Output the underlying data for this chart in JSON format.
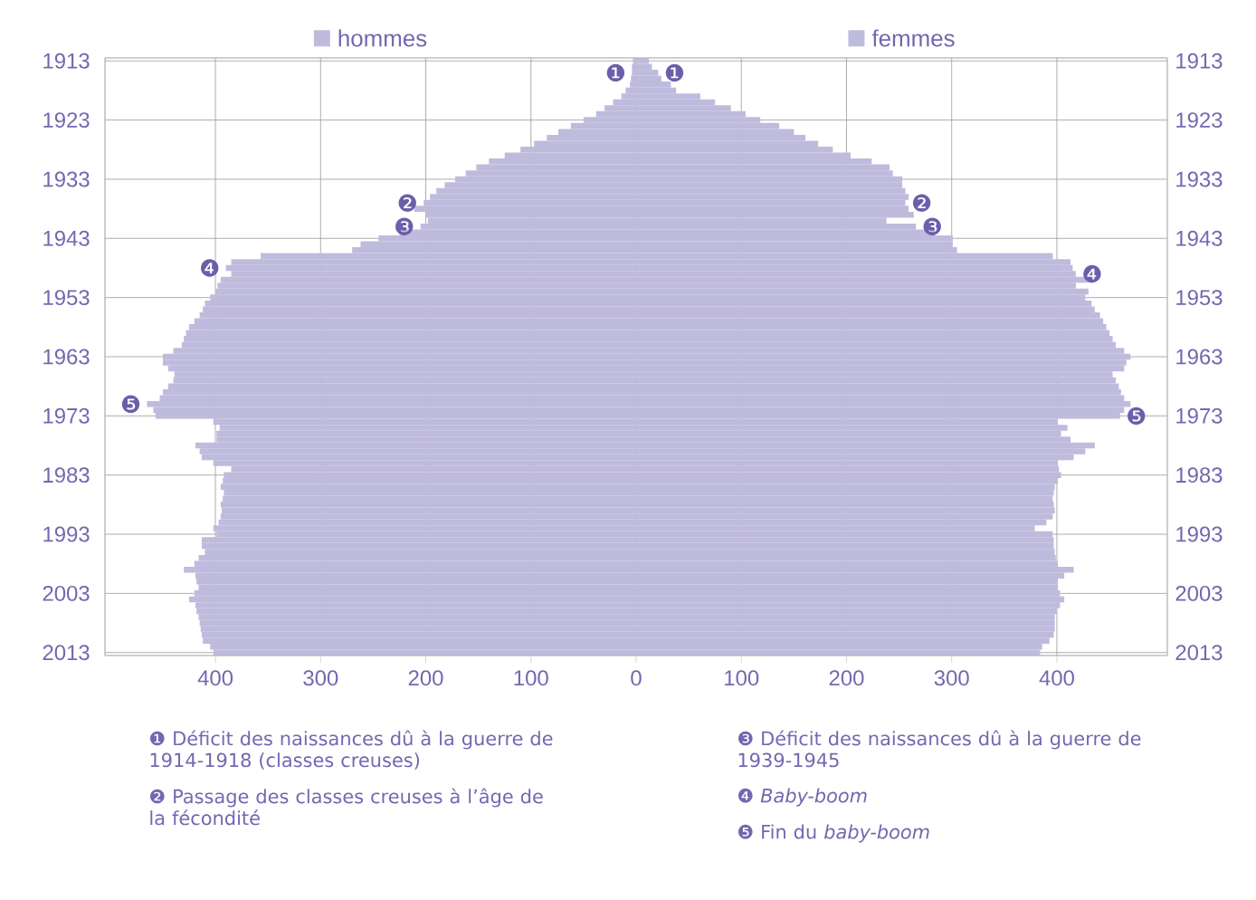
{
  "chart_data": {
    "type": "bar",
    "orientation": "horizontal",
    "x": [
      1913,
      1914,
      1915,
      1916,
      1917,
      1918,
      1919,
      1920,
      1921,
      1922,
      1923,
      1924,
      1925,
      1926,
      1927,
      1928,
      1929,
      1930,
      1931,
      1932,
      1933,
      1934,
      1935,
      1936,
      1937,
      1938,
      1939,
      1940,
      1941,
      1942,
      1943,
      1944,
      1945,
      1946,
      1947,
      1948,
      1949,
      1950,
      1951,
      1952,
      1953,
      1954,
      1955,
      1956,
      1957,
      1958,
      1959,
      1960,
      1961,
      1962,
      1963,
      1964,
      1965,
      1966,
      1967,
      1968,
      1969,
      1970,
      1971,
      1972,
      1973,
      1974,
      1975,
      1976,
      1977,
      1978,
      1979,
      1980,
      1981,
      1982,
      1983,
      1984,
      1985,
      1986,
      1987,
      1988,
      1989,
      1990,
      1991,
      1992,
      1993,
      1994,
      1995,
      1996,
      1997,
      1998,
      1999,
      2000,
      2001,
      2002,
      2003,
      2004,
      2005,
      2006,
      2007,
      2008,
      2009,
      2010,
      2011,
      2012,
      2013
    ],
    "series": [
      {
        "name": "hommes",
        "color": "#bfbbdd",
        "values": [
          -3,
          -4,
          -4,
          -5,
          -6,
          -10,
          -14,
          -22,
          -30,
          -38,
          -50,
          -62,
          -74,
          -85,
          -97,
          -110,
          -125,
          -140,
          -152,
          -162,
          -172,
          -182,
          -190,
          -196,
          -202,
          -211,
          -200,
          -198,
          -205,
          -225,
          -245,
          -262,
          -270,
          -357,
          -385,
          -390,
          -385,
          -395,
          -398,
          -400,
          -405,
          -410,
          -412,
          -415,
          -420,
          -425,
          -428,
          -430,
          -432,
          -440,
          -450,
          -450,
          -445,
          -439,
          -440,
          -445,
          -450,
          -453,
          -465,
          -459,
          -457,
          -402,
          -396,
          -399,
          -399,
          -419,
          -415,
          -413,
          -402,
          -385,
          -392,
          -393,
          -395,
          -392,
          -393,
          -395,
          -394,
          -395,
          -397,
          -402,
          -399,
          -413,
          -413,
          -410,
          -416,
          -420,
          -430,
          -419,
          -418,
          -416,
          -420,
          -425,
          -419,
          -418,
          -416,
          -415,
          -414,
          -413,
          -412,
          -405,
          -402
        ]
      },
      {
        "name": "femmes",
        "color": "#bfbbdd",
        "values": [
          12,
          15,
          21,
          24,
          33,
          38,
          61,
          75,
          90,
          104,
          118,
          136,
          150,
          161,
          173,
          187,
          204,
          224,
          241,
          244,
          253,
          253,
          256,
          259,
          256,
          259,
          264,
          238,
          266,
          284,
          301,
          301,
          305,
          396,
          413,
          415,
          418,
          433,
          418,
          430,
          427,
          433,
          436,
          441,
          444,
          447,
          450,
          453,
          456,
          464,
          470,
          466,
          464,
          453,
          456,
          459,
          461,
          464,
          470,
          464,
          460,
          401,
          410,
          404,
          413,
          436,
          427,
          416,
          401,
          402,
          404,
          401,
          398,
          397,
          396,
          397,
          398,
          396,
          390,
          379,
          396,
          397,
          397,
          398,
          399,
          401,
          416,
          407,
          401,
          401,
          403,
          407,
          403,
          400,
          398,
          398,
          398,
          397,
          393,
          386,
          384
        ]
      }
    ],
    "xlim": [
      -505,
      505
    ],
    "xticks": [
      {
        "value": -400,
        "label": "400"
      },
      {
        "value": -300,
        "label": "300"
      },
      {
        "value": -200,
        "label": "200"
      },
      {
        "value": -100,
        "label": "100"
      },
      0,
      100,
      200,
      300,
      400
    ],
    "ylim": [
      2013.5,
      1912.5
    ],
    "yticks": [
      1913,
      1923,
      1933,
      1943,
      1953,
      1963,
      1973,
      1983,
      1993,
      2003,
      2013
    ],
    "y2lim": [
      2013.5,
      1912.5
    ],
    "y2ticks": [
      1913,
      1923,
      1933,
      1943,
      1953,
      1963,
      1973,
      1983,
      1993,
      2003,
      2013
    ],
    "grid": true,
    "legend": "top",
    "stacked": true,
    "annotations": [
      {
        "text": "❶",
        "x": -4,
        "y": 1915
      },
      {
        "text": "❶",
        "x": 21,
        "y": 1915
      },
      {
        "text": "❷",
        "x": -202,
        "y": 1937
      },
      {
        "text": "❷",
        "x": 256,
        "y": 1937
      },
      {
        "text": "❸",
        "x": -205,
        "y": 1941
      },
      {
        "text": "❸",
        "x": 266,
        "y": 1941
      },
      {
        "text": "❹",
        "x": -390,
        "y": 1948
      },
      {
        "text": "❹",
        "x": 418,
        "y": 1949
      },
      {
        "text": "❺",
        "x": -465,
        "y": 1971
      },
      {
        "text": "❺",
        "x": 460,
        "y": 1973
      },
      "❶ Déficit des naissances dû à la guerre de 1914-1918 (classes creuses)",
      "❷ Passage des classes creuses à l’âge de la fécondité",
      "❸ Déficit des naissances dû à la guerre de 1939-1945",
      "❹ *Baby-boom*",
      "❺ Fin du *baby-boom*"
    ]
  }
}
